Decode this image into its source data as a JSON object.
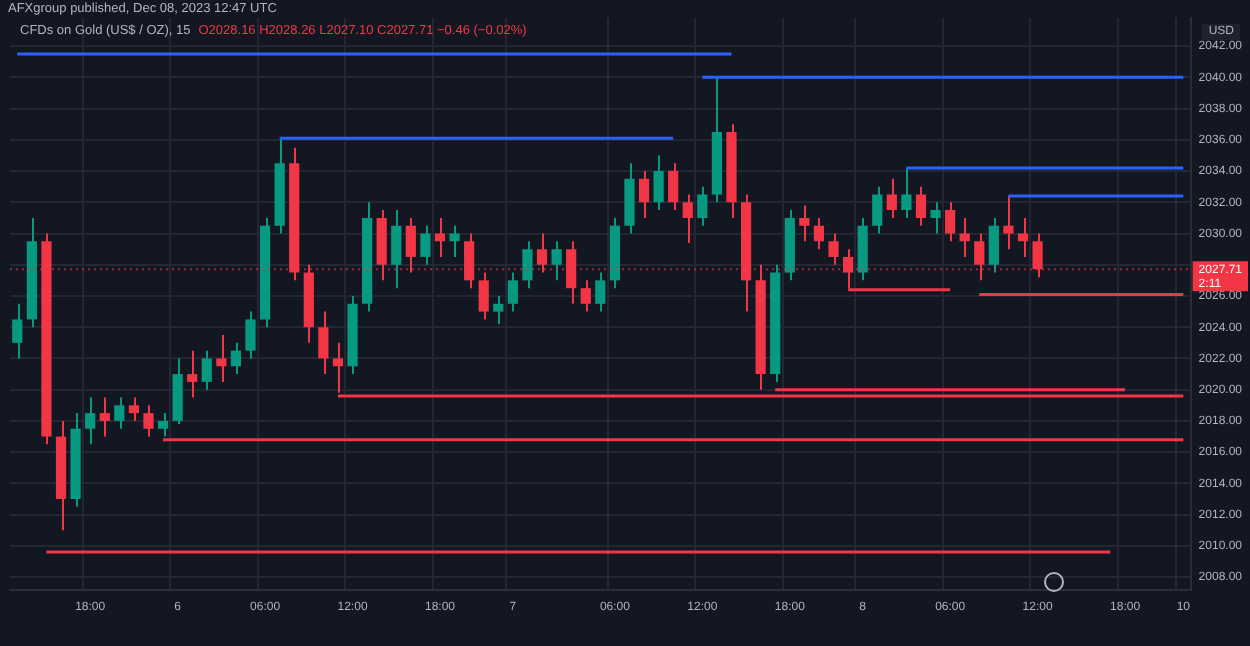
{
  "chart_data": {
    "type": "candlestick",
    "title": "AFXgroup published, Dec 08, 2023 12:47 UTC",
    "subtitle": "CFDs on Gold (US$ / OZ), 15",
    "ylabel": "USD",
    "annotations": [
      "O2028.16 H2028.26 L2027.10 C2027.71 −0.46 (−0.02%)",
      "2:11"
    ],
    "categories": [
      null,
      null,
      null,
      null,
      null,
      "18:00",
      null,
      null,
      null,
      null,
      null,
      "6",
      null,
      null,
      null,
      null,
      null,
      "06:00",
      null,
      null,
      null,
      null,
      null,
      "12:00",
      null,
      null,
      null,
      null,
      null,
      "18:00",
      null,
      null,
      null,
      null,
      "7",
      null,
      null,
      null,
      null,
      null,
      null,
      "06:00",
      null,
      null,
      null,
      null,
      null,
      "12:00",
      null,
      null,
      null,
      null,
      null,
      "18:00",
      null,
      null,
      null,
      null,
      "8",
      null,
      null,
      null,
      null,
      null,
      "06:00",
      null,
      null,
      null,
      null,
      null,
      "12:00",
      null,
      null,
      null,
      null,
      null,
      "18:00",
      null,
      null,
      null,
      "10"
    ],
    "ohlc": [
      [
        2023,
        2025.5,
        2022,
        2024.5
      ],
      [
        2024.5,
        2031,
        2024,
        2029.5
      ],
      [
        2029.5,
        2030,
        2016.5,
        2017
      ],
      [
        2017,
        2018,
        2011,
        2013
      ],
      [
        2013,
        2018.5,
        2012.5,
        2017.5
      ],
      [
        2017.5,
        2019.5,
        2016.5,
        2018.5
      ],
      [
        2018.5,
        2019.5,
        2017,
        2018
      ],
      [
        2018,
        2019.5,
        2017.5,
        2019
      ],
      [
        2019,
        2019.5,
        2018,
        2018.5
      ],
      [
        2018.5,
        2019,
        2017,
        2017.5
      ],
      [
        2017.5,
        2018.5,
        2017,
        2018
      ],
      [
        2018,
        2022,
        2017.8,
        2021
      ],
      [
        2021,
        2022.5,
        2019.5,
        2020.5
      ],
      [
        2020.5,
        2022.5,
        2020,
        2022
      ],
      [
        2022,
        2023.5,
        2020.5,
        2021.5
      ],
      [
        2021.5,
        2023,
        2021,
        2022.5
      ],
      [
        2022.5,
        2025,
        2022,
        2024.5
      ],
      [
        2024.5,
        2031,
        2024,
        2030.5
      ],
      [
        2030.5,
        2036,
        2030,
        2034.5
      ],
      [
        2034.5,
        2035.5,
        2027,
        2027.5
      ],
      [
        2027.5,
        2028,
        2023,
        2024
      ],
      [
        2024,
        2025,
        2021,
        2022
      ],
      [
        2022,
        2023,
        2019.8,
        2021.5
      ],
      [
        2021.5,
        2026,
        2021,
        2025.5
      ],
      [
        2025.5,
        2032,
        2025,
        2031
      ],
      [
        2031,
        2031.5,
        2027,
        2028
      ],
      [
        2028,
        2031.5,
        2026.5,
        2030.5
      ],
      [
        2030.5,
        2031,
        2027.5,
        2028.5
      ],
      [
        2028.5,
        2030.5,
        2028,
        2030
      ],
      [
        2030,
        2031,
        2028.5,
        2029.5
      ],
      [
        2029.5,
        2030.5,
        2028.5,
        2030
      ],
      [
        2029.5,
        2030,
        2026.5,
        2027
      ],
      [
        2027,
        2027.5,
        2024.5,
        2025
      ],
      [
        2025,
        2026,
        2024.2,
        2025.5
      ],
      [
        2025.5,
        2027.5,
        2025,
        2027
      ],
      [
        2027,
        2029.5,
        2026.5,
        2029
      ],
      [
        2029,
        2030,
        2027.5,
        2028
      ],
      [
        2028,
        2029.5,
        2027,
        2029
      ],
      [
        2029,
        2029.5,
        2025.5,
        2026.5
      ],
      [
        2026.5,
        2027,
        2025,
        2025.5
      ],
      [
        2025.5,
        2027.5,
        2025,
        2027
      ],
      [
        2027,
        2031,
        2026.5,
        2030.5
      ],
      [
        2030.5,
        2034.5,
        2030,
        2033.5
      ],
      [
        2033.5,
        2034,
        2031,
        2032
      ],
      [
        2032,
        2035,
        2031.5,
        2034
      ],
      [
        2034,
        2034.5,
        2031.5,
        2032
      ],
      [
        2032,
        2032.5,
        2029.4,
        2031
      ],
      [
        2031,
        2033,
        2030.5,
        2032.5
      ],
      [
        2032.5,
        2040,
        2032,
        2036.5
      ],
      [
        2036.5,
        2037,
        2031,
        2032
      ],
      [
        2032,
        2032.5,
        2025,
        2027
      ],
      [
        2027,
        2028,
        2020,
        2021
      ],
      [
        2021,
        2028,
        2020.5,
        2027.5
      ],
      [
        2027.5,
        2031.5,
        2027,
        2031
      ],
      [
        2031,
        2031.8,
        2029.5,
        2030.5
      ],
      [
        2030.5,
        2031,
        2029,
        2029.5
      ],
      [
        2029.5,
        2030,
        2028,
        2028.5
      ],
      [
        2028.5,
        2029,
        2026.5,
        2027.5
      ],
      [
        2027.5,
        2031,
        2027,
        2030.5
      ],
      [
        2030.5,
        2033,
        2030,
        2032.5
      ],
      [
        2032.5,
        2033.5,
        2031,
        2031.5
      ],
      [
        2031.5,
        2034.2,
        2031,
        2032.5
      ],
      [
        2032.5,
        2033,
        2030.5,
        2031
      ],
      [
        2031,
        2032,
        2030,
        2031.5
      ],
      [
        2031.5,
        2032,
        2029.5,
        2030
      ],
      [
        2030,
        2031,
        2028.5,
        2029.5
      ],
      [
        2029.5,
        2030,
        2027,
        2028
      ],
      [
        2028,
        2031,
        2027.5,
        2030.5
      ],
      [
        2030.5,
        2032.4,
        2029,
        2030
      ],
      [
        2030,
        2031,
        2028.5,
        2029.5
      ],
      [
        2029.5,
        2030,
        2027.2,
        2027.71
      ],
      null,
      null,
      null,
      null,
      null,
      null,
      null,
      null,
      null,
      null
    ],
    "colors": [
      "#089981",
      "#089981",
      "#f23645",
      "#f23645",
      "#089981",
      "#089981",
      "#f23645",
      "#089981",
      "#f23645",
      "#f23645",
      "#089981",
      "#089981",
      "#f23645",
      "#089981",
      "#f23645",
      "#089981",
      "#089981",
      "#089981",
      "#089981",
      "#f23645",
      "#f23645",
      "#f23645",
      "#f23645",
      "#089981",
      "#089981",
      "#f23645",
      "#089981",
      "#f23645",
      "#089981",
      "#f23645",
      "#089981",
      "#f23645",
      "#f23645",
      "#089981",
      "#089981",
      "#089981",
      "#f23645",
      "#089981",
      "#f23645",
      "#f23645",
      "#089981",
      "#089981",
      "#089981",
      "#f23645",
      "#089981",
      "#f23645",
      "#f23645",
      "#089981",
      "#089981",
      "#f23645",
      "#f23645",
      "#f23645",
      "#089981",
      "#089981",
      "#f23645",
      "#f23645",
      "#f23645",
      "#f23645",
      "#089981",
      "#089981",
      "#f23645",
      "#089981",
      "#f23645",
      "#089981",
      "#f23645",
      "#f23645",
      "#f23645",
      "#089981",
      "#f23645",
      "#f23645",
      "#f23645",
      null,
      null,
      null,
      null,
      null,
      null,
      null,
      null,
      null,
      null
    ],
    "series": [
      {
        "type": "line",
        "color": "#2962ff",
        "values": [
          2041.5,
          null,
          null,
          null,
          null,
          null,
          null,
          null,
          null,
          null,
          null,
          null,
          null,
          null,
          null,
          null,
          null,
          null,
          null,
          null,
          null,
          null,
          null,
          null,
          null,
          null,
          null,
          null,
          null,
          null,
          null,
          null,
          null,
          null,
          null,
          null,
          null,
          null,
          null,
          null,
          null,
          null,
          null,
          null,
          null,
          null,
          null,
          null,
          null,
          2041.5,
          null,
          null,
          null,
          null,
          null,
          null,
          null,
          null,
          null,
          null,
          null,
          null,
          null,
          null,
          null,
          null,
          null,
          null,
          null,
          null,
          null,
          null,
          null,
          null,
          null,
          null,
          null,
          null,
          null,
          null,
          null
        ]
      },
      {
        "type": "line",
        "color": "#2962ff",
        "values": [
          null,
          null,
          null,
          null,
          null,
          null,
          null,
          null,
          null,
          null,
          null,
          null,
          null,
          null,
          null,
          null,
          null,
          null,
          2036.1,
          null,
          null,
          null,
          null,
          null,
          null,
          null,
          null,
          null,
          null,
          null,
          null,
          null,
          null,
          null,
          null,
          null,
          null,
          null,
          null,
          null,
          null,
          null,
          null,
          null,
          null,
          2036.1,
          null,
          null,
          null,
          null,
          null,
          null,
          null,
          null,
          null,
          null,
          null,
          null,
          null,
          null,
          null,
          null,
          null,
          null,
          null,
          null,
          null,
          null,
          null,
          null,
          null,
          null,
          null,
          null,
          null,
          null,
          null,
          null,
          null,
          null,
          null
        ]
      },
      {
        "type": "line",
        "color": "#2962ff",
        "values": [
          null,
          null,
          null,
          null,
          null,
          null,
          null,
          null,
          null,
          null,
          null,
          null,
          null,
          null,
          null,
          null,
          null,
          null,
          null,
          null,
          null,
          null,
          null,
          null,
          null,
          null,
          null,
          null,
          null,
          null,
          null,
          null,
          null,
          null,
          null,
          null,
          null,
          null,
          null,
          null,
          null,
          null,
          null,
          null,
          null,
          null,
          null,
          2040,
          null,
          null,
          null,
          null,
          null,
          null,
          null,
          null,
          null,
          null,
          null,
          null,
          null,
          null,
          null,
          null,
          null,
          null,
          null,
          null,
          null,
          null,
          null,
          null,
          null,
          null,
          null,
          null,
          null,
          null,
          null,
          null,
          2040
        ]
      },
      {
        "type": "line",
        "color": "#2962ff",
        "values": [
          null,
          null,
          null,
          null,
          null,
          null,
          null,
          null,
          null,
          null,
          null,
          null,
          null,
          null,
          null,
          null,
          null,
          null,
          null,
          null,
          null,
          null,
          null,
          null,
          null,
          null,
          null,
          null,
          null,
          null,
          null,
          null,
          null,
          null,
          null,
          null,
          null,
          null,
          null,
          null,
          null,
          null,
          null,
          null,
          null,
          null,
          null,
          null,
          null,
          null,
          null,
          null,
          null,
          null,
          null,
          null,
          null,
          null,
          null,
          null,
          null,
          2034.2,
          null,
          null,
          null,
          null,
          null,
          null,
          null,
          null,
          null,
          null,
          null,
          null,
          null,
          null,
          null,
          null,
          null,
          null,
          2034.2
        ]
      },
      {
        "type": "line",
        "color": "#2962ff",
        "values": [
          null,
          null,
          null,
          null,
          null,
          null,
          null,
          null,
          null,
          null,
          null,
          null,
          null,
          null,
          null,
          null,
          null,
          null,
          null,
          null,
          null,
          null,
          null,
          null,
          null,
          null,
          null,
          null,
          null,
          null,
          null,
          null,
          null,
          null,
          null,
          null,
          null,
          null,
          null,
          null,
          null,
          null,
          null,
          null,
          null,
          null,
          null,
          null,
          null,
          null,
          null,
          null,
          null,
          null,
          null,
          null,
          null,
          null,
          null,
          null,
          null,
          null,
          null,
          null,
          null,
          null,
          null,
          null,
          2032.4,
          null,
          null,
          null,
          null,
          null,
          null,
          null,
          null,
          null,
          null,
          null,
          2032.4
        ]
      },
      {
        "type": "line",
        "color": "#f23645",
        "values": [
          null,
          null,
          null,
          null,
          null,
          null,
          null,
          null,
          null,
          null,
          null,
          null,
          null,
          null,
          null,
          null,
          null,
          null,
          null,
          null,
          null,
          null,
          null,
          null,
          null,
          null,
          null,
          null,
          null,
          null,
          null,
          null,
          null,
          null,
          null,
          null,
          null,
          null,
          null,
          null,
          null,
          null,
          null,
          null,
          null,
          null,
          null,
          null,
          null,
          null,
          null,
          null,
          null,
          null,
          null,
          null,
          null,
          2026.4,
          null,
          null,
          null,
          null,
          null,
          null,
          2026.4,
          null,
          null,
          null,
          null,
          null,
          null,
          null,
          null,
          null,
          null,
          null,
          null,
          null,
          null,
          null,
          null
        ]
      },
      {
        "type": "line",
        "color": "#f23645",
        "values": [
          null,
          null,
          null,
          null,
          null,
          null,
          null,
          null,
          null,
          null,
          null,
          null,
          null,
          null,
          null,
          null,
          null,
          null,
          null,
          null,
          null,
          null,
          null,
          null,
          null,
          null,
          null,
          null,
          null,
          null,
          null,
          null,
          null,
          null,
          null,
          null,
          null,
          null,
          null,
          null,
          null,
          null,
          null,
          null,
          null,
          null,
          null,
          null,
          null,
          null,
          null,
          null,
          null,
          null,
          null,
          null,
          null,
          null,
          null,
          null,
          null,
          null,
          null,
          null,
          null,
          null,
          2026.1,
          null,
          null,
          null,
          null,
          null,
          null,
          null,
          null,
          null,
          null,
          null,
          null,
          null,
          2026.1
        ]
      },
      {
        "type": "line",
        "color": "#f23645",
        "values": [
          null,
          null,
          null,
          null,
          null,
          null,
          null,
          null,
          null,
          null,
          null,
          null,
          null,
          null,
          null,
          null,
          null,
          null,
          null,
          null,
          null,
          null,
          null,
          null,
          null,
          null,
          null,
          null,
          null,
          null,
          null,
          null,
          null,
          null,
          null,
          null,
          null,
          null,
          null,
          null,
          null,
          null,
          null,
          null,
          null,
          null,
          null,
          null,
          null,
          null,
          null,
          null,
          2020,
          null,
          null,
          null,
          null,
          null,
          null,
          null,
          null,
          null,
          null,
          null,
          null,
          null,
          null,
          null,
          null,
          null,
          null,
          null,
          null,
          null,
          null,
          null,
          2020,
          null,
          null,
          null,
          null
        ]
      },
      {
        "type": "line",
        "color": "#f23645",
        "values": [
          null,
          null,
          null,
          null,
          null,
          null,
          null,
          null,
          null,
          null,
          null,
          null,
          null,
          null,
          null,
          null,
          null,
          null,
          null,
          null,
          null,
          null,
          2019.6,
          null,
          null,
          null,
          null,
          null,
          null,
          null,
          null,
          null,
          null,
          null,
          null,
          null,
          null,
          null,
          null,
          null,
          null,
          null,
          null,
          null,
          null,
          null,
          null,
          null,
          null,
          null,
          null,
          null,
          null,
          null,
          null,
          null,
          null,
          null,
          null,
          null,
          null,
          null,
          null,
          null,
          null,
          null,
          null,
          null,
          null,
          null,
          null,
          null,
          null,
          null,
          null,
          null,
          null,
          null,
          null,
          null,
          2019.6
        ]
      },
      {
        "type": "line",
        "color": "#f23645",
        "values": [
          null,
          null,
          null,
          null,
          null,
          null,
          null,
          null,
          null,
          null,
          2016.8,
          null,
          null,
          null,
          null,
          null,
          null,
          null,
          null,
          null,
          null,
          null,
          null,
          null,
          null,
          null,
          null,
          null,
          null,
          null,
          null,
          null,
          null,
          null,
          null,
          null,
          null,
          null,
          null,
          null,
          null,
          null,
          null,
          null,
          null,
          null,
          null,
          null,
          null,
          null,
          null,
          null,
          null,
          null,
          null,
          null,
          null,
          null,
          null,
          null,
          null,
          null,
          null,
          null,
          null,
          null,
          null,
          null,
          null,
          null,
          null,
          null,
          null,
          null,
          null,
          null,
          null,
          null,
          null,
          null,
          2016.8
        ]
      },
      {
        "type": "line",
        "color": "#f23645",
        "values": [
          null,
          null,
          2009.6,
          null,
          null,
          null,
          null,
          null,
          null,
          null,
          null,
          null,
          null,
          null,
          null,
          null,
          null,
          null,
          null,
          null,
          null,
          null,
          null,
          null,
          null,
          null,
          null,
          null,
          null,
          null,
          null,
          null,
          null,
          null,
          null,
          null,
          null,
          null,
          null,
          null,
          null,
          null,
          null,
          null,
          null,
          null,
          null,
          null,
          null,
          null,
          null,
          null,
          null,
          null,
          null,
          null,
          null,
          null,
          null,
          null,
          null,
          null,
          null,
          null,
          null,
          null,
          null,
          null,
          null,
          null,
          null,
          null,
          null,
          null,
          null,
          2009.6,
          null,
          null,
          null,
          null,
          null
        ]
      }
    ],
    "ylim": [
      2007.2,
      2043.8
    ],
    "yticks": [
      {
        "value": 2008,
        "label": "2008.00"
      },
      {
        "value": 2010,
        "label": "2010.00"
      },
      {
        "value": 2012,
        "label": "2012.00"
      },
      {
        "value": 2014,
        "label": "2014.00"
      },
      {
        "value": 2016,
        "label": "2016.00"
      },
      {
        "value": 2018,
        "label": "2018.00"
      },
      {
        "value": 2020,
        "label": "2020.00"
      },
      {
        "value": 2022,
        "label": "2022.00"
      },
      {
        "value": 2024,
        "label": "2024.00"
      },
      {
        "value": 2026,
        "label": "2026.00"
      },
      {
        "value": 2028,
        "label": null
      },
      {
        "value": 2030,
        "label": "2030.00"
      },
      {
        "value": 2032,
        "label": "2032.00"
      },
      {
        "value": 2034,
        "label": "2034.00"
      },
      {
        "value": 2036,
        "label": "2036.00"
      },
      {
        "value": 2038,
        "label": "2038.00"
      },
      {
        "value": 2040,
        "label": "2040.00"
      },
      {
        "value": 2042,
        "label": "2042.00"
      }
    ],
    "ref_lines": [
      {
        "axis": "y",
        "value": 2027.71,
        "label": "2027.71",
        "color": "#f23645",
        "line_style": "dotted"
      }
    ],
    "grid": true
  }
}
